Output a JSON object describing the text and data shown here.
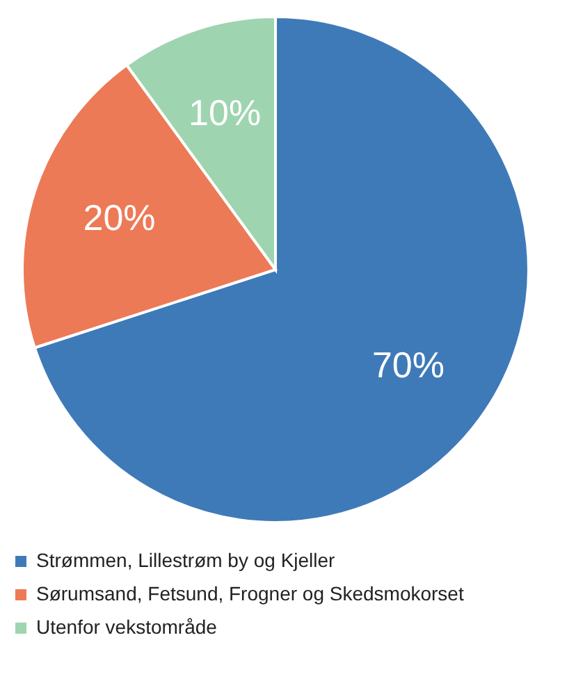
{
  "chart_data": {
    "type": "pie",
    "categories": [
      "Strømmen, Lillestrøm by og Kjeller",
      "Sørumsand, Fetsund, Frogner og Skedsmokorset",
      "Utenfor vekstområde"
    ],
    "values": [
      70,
      20,
      10
    ],
    "colors": [
      "#3f7ab8",
      "#ec7a56",
      "#9fd4b0"
    ],
    "value_labels": [
      "70%",
      "20%",
      "10%"
    ],
    "legend": "bottom"
  }
}
